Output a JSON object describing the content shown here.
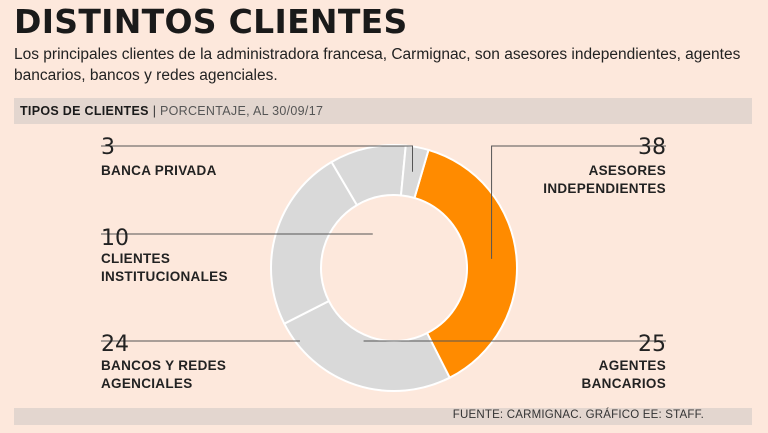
{
  "title": "DISTINTOS CLIENTES",
  "subtitle": "Los principales clientes de la administradora francesa, Carmignac, son asesores independientes, agentes bancarios, bancos y redes agenciales.",
  "header": {
    "label": "TIPOS DE CLIENTES",
    "separator": "|",
    "detail": "PORCENTAJE, AL 30/09/17"
  },
  "footer": {
    "source": "FUENTE: CARMIGNAC. GRÁFICO EE: STAFF."
  },
  "colors": {
    "highlight": "#ff8b00",
    "slice": "#d9d9d9",
    "background": "#fde8dc"
  },
  "chart_data": {
    "type": "pie",
    "variant": "donut",
    "unit": "%",
    "slices": [
      {
        "label_lines": [
          "ASESORES",
          "INDEPENDIENTES"
        ],
        "value": 38,
        "highlight": true
      },
      {
        "label_lines": [
          "AGENTES",
          "BANCARIOS"
        ],
        "value": 25,
        "highlight": false
      },
      {
        "label_lines": [
          "BANCOS Y REDES",
          "AGENCIALES"
        ],
        "value": 24,
        "highlight": false
      },
      {
        "label_lines": [
          "CLIENTES",
          "INSTITUCIONALES"
        ],
        "value": 10,
        "highlight": false
      },
      {
        "label_lines": [
          "BANCA PRIVADA"
        ],
        "value": 3,
        "highlight": false
      }
    ]
  }
}
